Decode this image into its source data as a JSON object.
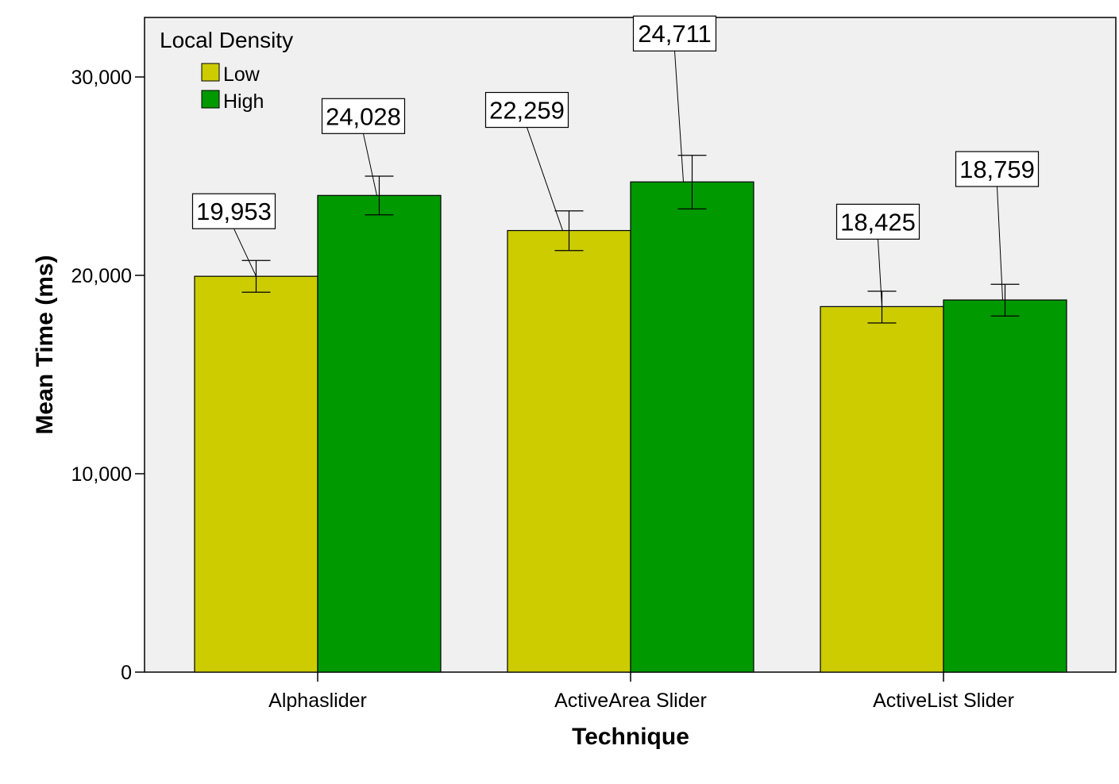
{
  "chart_data": {
    "type": "bar",
    "categories": [
      "Alphaslider",
      "ActiveArea Slider",
      "ActiveList Slider"
    ],
    "series": [
      {
        "name": "Low",
        "color": "#cccc00",
        "values": [
          19953,
          22259,
          18425
        ],
        "value_labels": [
          "19,953",
          "22,259",
          "18,425"
        ],
        "error_low": [
          19150,
          21250,
          17600
        ],
        "error_high": [
          20750,
          23250,
          19200
        ]
      },
      {
        "name": "High",
        "color": "#009900",
        "values": [
          24028,
          24711,
          18759
        ],
        "value_labels": [
          "24,028",
          "24,711",
          "18,759"
        ],
        "error_low": [
          23050,
          23350,
          17950
        ],
        "error_high": [
          25000,
          26050,
          19550
        ]
      }
    ],
    "title": "",
    "xlabel": "Technique",
    "ylabel": "Mean Time (ms)",
    "ylim": [
      0,
      33000
    ],
    "yticks": [
      0,
      10000,
      20000,
      30000
    ],
    "ytick_labels": [
      "0",
      "10,000",
      "20,000",
      "30,000"
    ],
    "legend": {
      "title": "Local Density",
      "position": "top-left"
    },
    "plot_background": "#f0f0f0",
    "grid": false,
    "error_bars": true
  }
}
